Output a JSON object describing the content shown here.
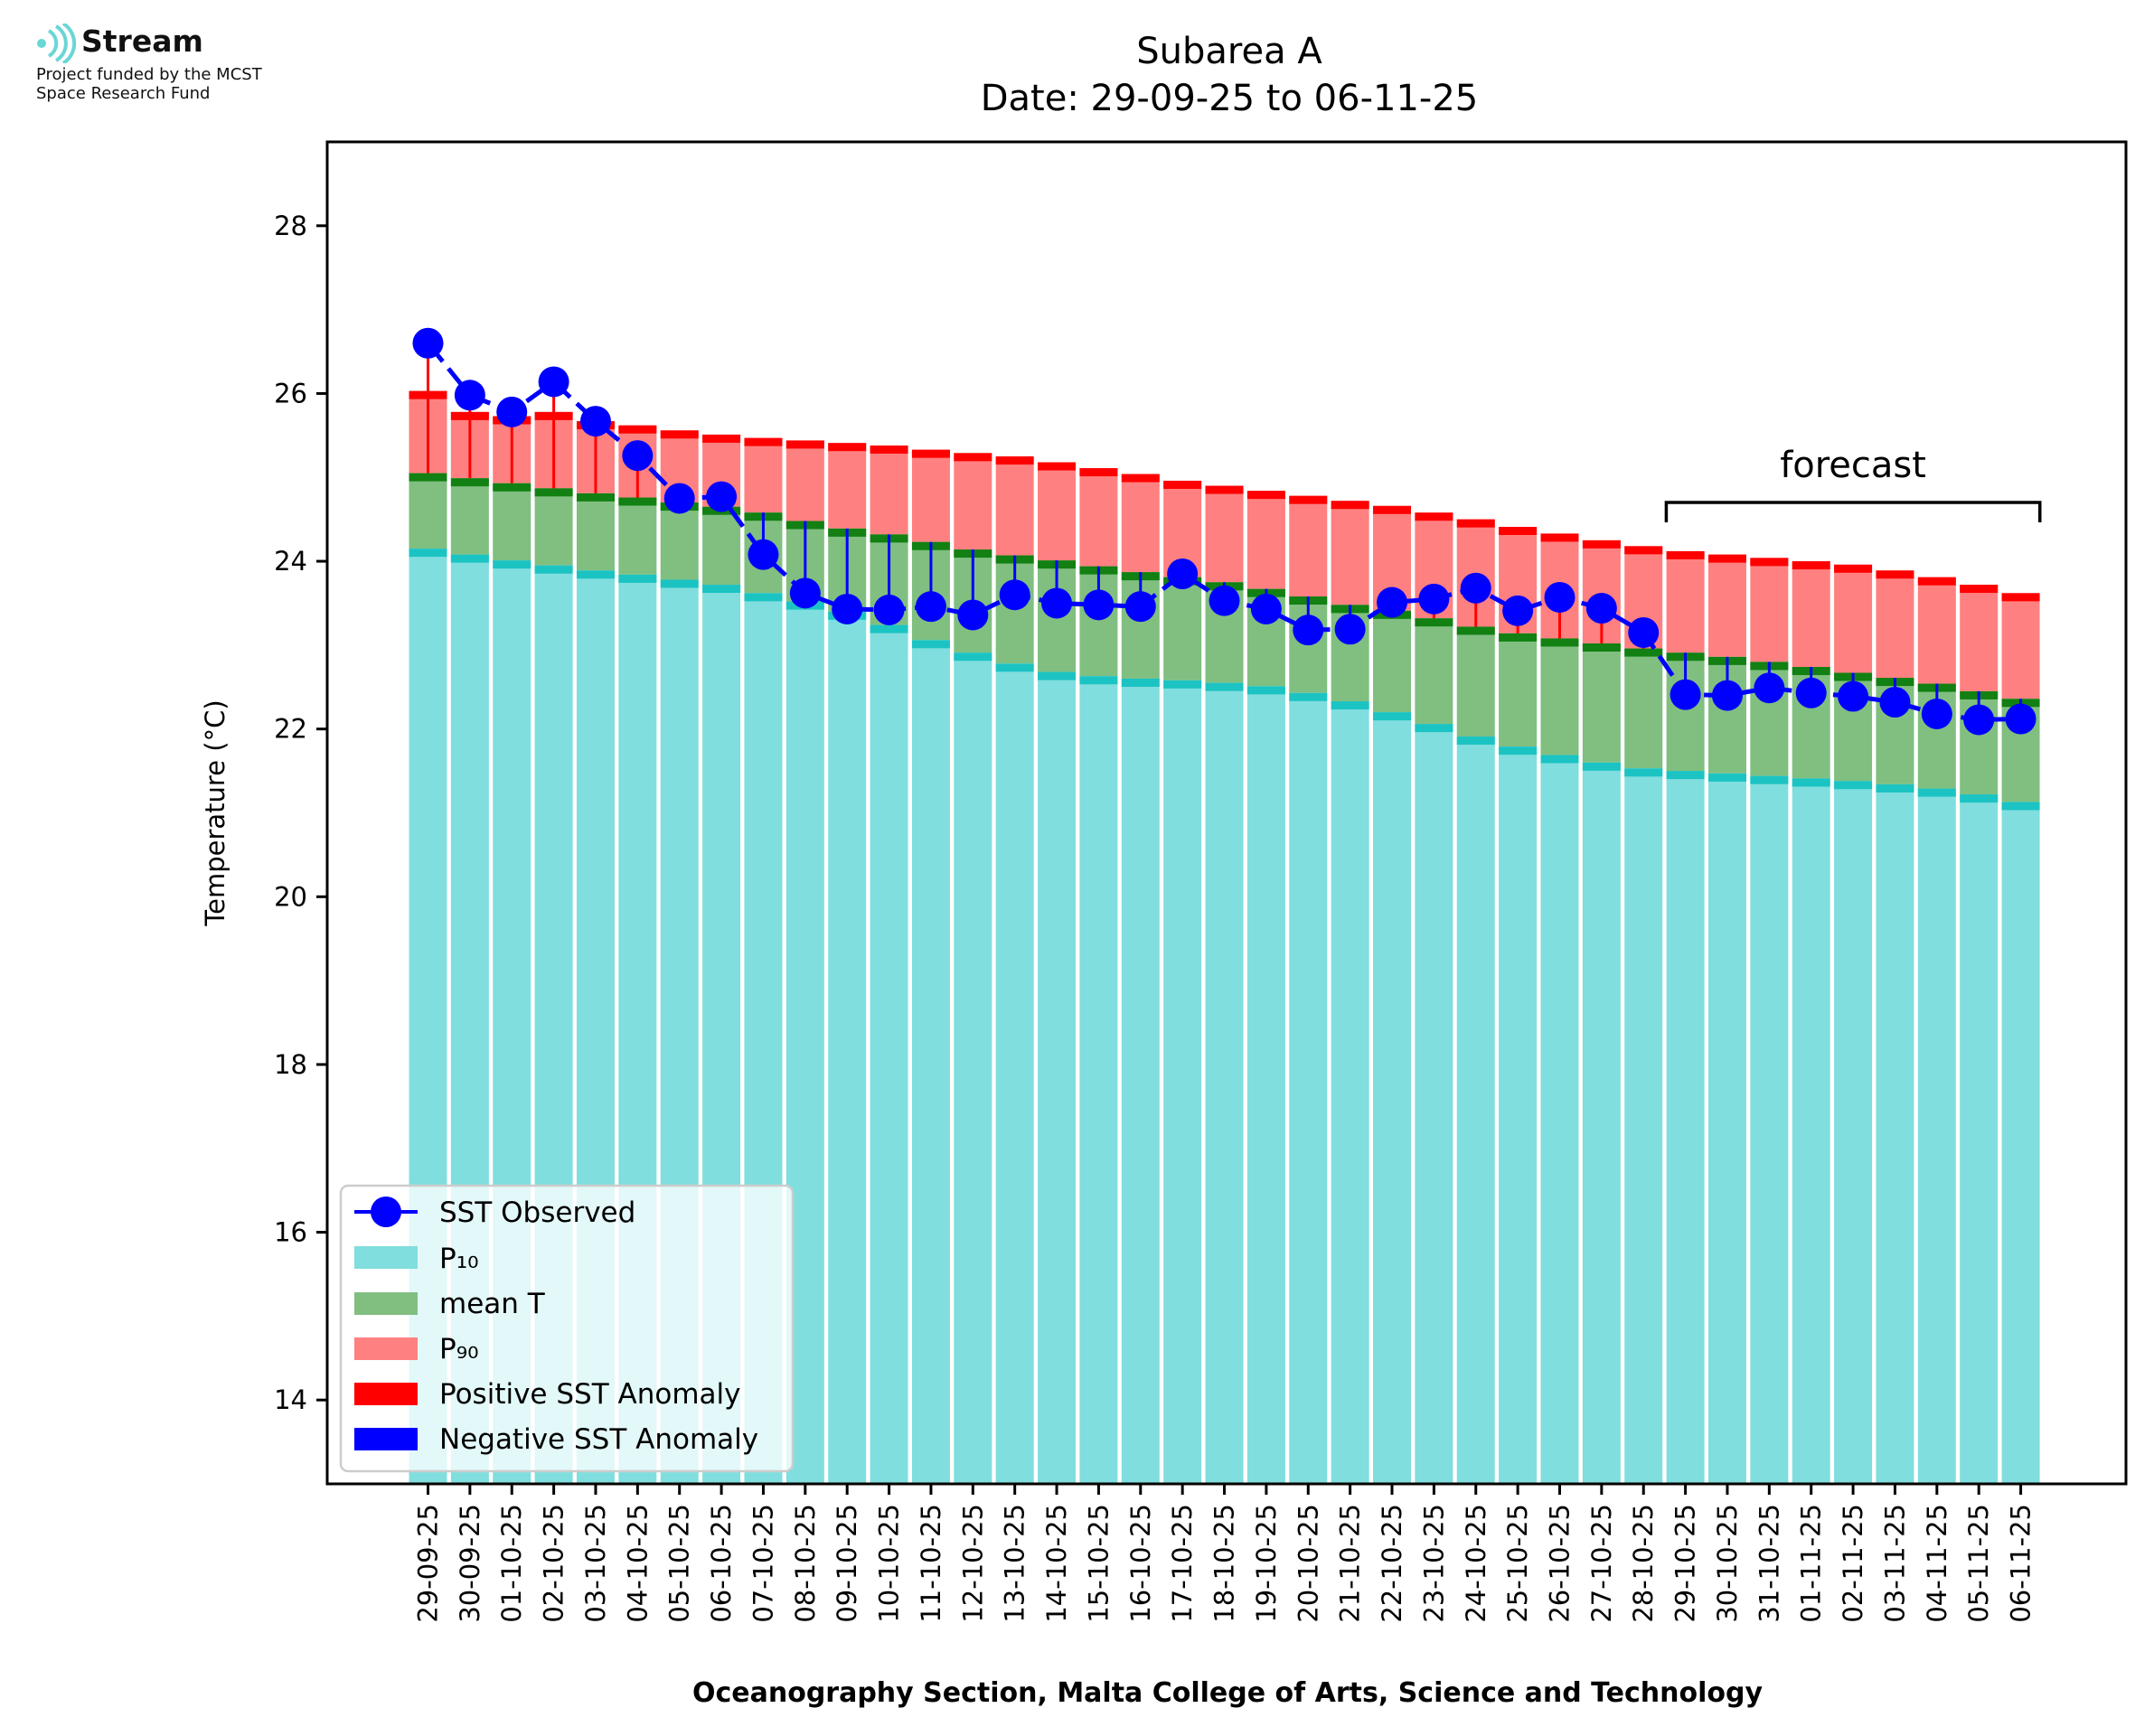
{
  "logo": {
    "name": "Stream",
    "line1": "Project funded by the MCST",
    "line2": "Space Research Fund"
  },
  "chart_data": {
    "type": "bar",
    "title": "Subarea A",
    "subtitle": "Date: 29-09-25 to 06-11-25",
    "xlabel": "Oceanography Section, Malta College of Arts, Science and Technology",
    "ylabel": "Temperature (°C)",
    "ylim": [
      13,
      29
    ],
    "yticks": [
      14,
      16,
      18,
      20,
      22,
      24,
      26,
      28
    ],
    "grid": false,
    "legend_position": "lower-left",
    "annotation": "forecast",
    "forecast_start_index": 30,
    "categories": [
      "29-09-25",
      "30-09-25",
      "01-10-25",
      "02-10-25",
      "03-10-25",
      "04-10-25",
      "05-10-25",
      "06-10-25",
      "07-10-25",
      "08-10-25",
      "09-10-25",
      "10-10-25",
      "11-10-25",
      "12-10-25",
      "13-10-25",
      "14-10-25",
      "15-10-25",
      "16-10-25",
      "17-10-25",
      "18-10-25",
      "19-10-25",
      "20-10-25",
      "21-10-25",
      "22-10-25",
      "23-10-25",
      "24-10-25",
      "25-10-25",
      "26-10-25",
      "27-10-25",
      "28-10-25",
      "29-10-25",
      "30-10-25",
      "31-10-25",
      "01-11-25",
      "02-11-25",
      "03-11-25",
      "04-11-25",
      "05-11-25",
      "06-11-25"
    ],
    "series": [
      {
        "name": "SST Observed",
        "values": [
          26.6,
          25.98,
          25.78,
          26.14,
          25.67,
          25.26,
          24.75,
          24.77,
          24.08,
          23.62,
          23.43,
          23.42,
          23.46,
          23.36,
          23.6,
          23.5,
          23.48,
          23.46,
          23.85,
          23.53,
          23.43,
          23.18,
          23.19,
          23.51,
          23.55,
          23.68,
          23.41,
          23.57,
          23.44,
          23.15,
          22.41,
          22.4,
          22.49,
          22.43,
          22.39,
          22.32,
          22.18,
          22.11,
          22.12
        ]
      },
      {
        "name": "P10",
        "values": [
          24.15,
          24.08,
          24.01,
          23.95,
          23.89,
          23.84,
          23.78,
          23.72,
          23.62,
          23.52,
          23.4,
          23.24,
          23.06,
          22.91,
          22.78,
          22.68,
          22.63,
          22.6,
          22.58,
          22.55,
          22.51,
          22.43,
          22.33,
          22.2,
          22.06,
          21.91,
          21.79,
          21.69,
          21.6,
          21.53,
          21.5,
          21.47,
          21.44,
          21.41,
          21.38,
          21.34,
          21.29,
          21.22,
          21.13
        ]
      },
      {
        "name": "mean T",
        "values": [
          25.05,
          24.99,
          24.93,
          24.87,
          24.81,
          24.76,
          24.7,
          24.65,
          24.58,
          24.48,
          24.39,
          24.32,
          24.23,
          24.14,
          24.07,
          24.01,
          23.94,
          23.87,
          23.81,
          23.75,
          23.67,
          23.58,
          23.48,
          23.41,
          23.32,
          23.22,
          23.14,
          23.08,
          23.02,
          22.96,
          22.91,
          22.86,
          22.8,
          22.74,
          22.67,
          22.61,
          22.54,
          22.45,
          22.36
        ]
      },
      {
        "name": "P90",
        "values": [
          26.03,
          25.78,
          25.73,
          25.78,
          25.67,
          25.62,
          25.56,
          25.51,
          25.47,
          25.44,
          25.41,
          25.38,
          25.33,
          25.29,
          25.25,
          25.18,
          25.11,
          25.04,
          24.96,
          24.9,
          24.84,
          24.78,
          24.72,
          24.66,
          24.58,
          24.5,
          24.41,
          24.33,
          24.25,
          24.18,
          24.12,
          24.08,
          24.04,
          24.0,
          23.96,
          23.89,
          23.81,
          23.72,
          23.62
        ]
      }
    ],
    "legend": [
      "SST Observed",
      "P₁₀",
      "mean T",
      "P₉₀",
      "Positive SST Anomaly",
      "Negative SST Anomaly"
    ],
    "colors": {
      "p10_fill": "#80dede",
      "p10_band": "#1cc3c3",
      "mean_fill": "#80bf80",
      "mean_band": "#128012",
      "p90_fill": "#ff8080",
      "p90_band": "#ff0000",
      "observed": "#0000ff",
      "positive_anomaly": "#ff0000",
      "negative_anomaly": "#0000ff"
    }
  }
}
